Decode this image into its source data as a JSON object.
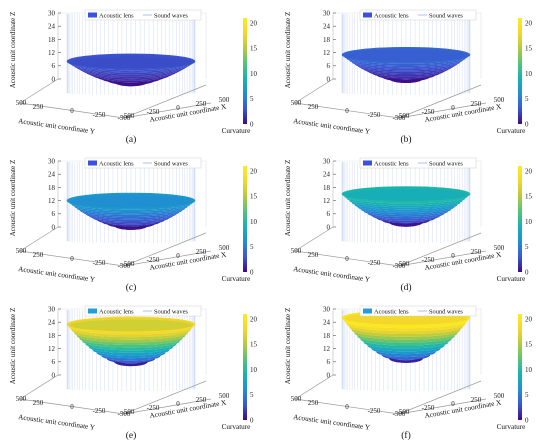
{
  "chart_data": [
    {
      "type": "surface3d",
      "panel_label": "(a)",
      "max_z": 8,
      "color_max": 3
    },
    {
      "type": "surface3d",
      "panel_label": "(b)",
      "max_z": 11,
      "color_max": 4
    },
    {
      "type": "surface3d",
      "panel_label": "(c)",
      "max_z": 12,
      "color_max": 7
    },
    {
      "type": "surface3d",
      "panel_label": "(d)",
      "max_z": 15,
      "color_max": 10
    },
    {
      "type": "surface3d",
      "panel_label": "(e)",
      "max_z": 23,
      "color_max": 19
    },
    {
      "type": "surface3d",
      "panel_label": "(f)",
      "max_z": 26,
      "color_max": 21
    }
  ],
  "shared": {
    "z_axis_label": "Acoustic unit coordinate Z",
    "x_axis_label": "Acoustic unit coordinate X",
    "y_axis_label": "Acoustic unit coordinate Y",
    "colorbar_label": "Curvature",
    "legend": [
      "Acoustic lens",
      "Sound waves"
    ],
    "z_ticks": [
      "0",
      "6",
      "12",
      "18",
      "24",
      "30"
    ],
    "colorbar_ticks": [
      "0",
      "5",
      "10",
      "15",
      "20"
    ],
    "y_ticks": [
      "500",
      "250",
      "0",
      "-250",
      "-500"
    ],
    "x_ticks": [
      "-500",
      "-250",
      "0",
      "250",
      "500"
    ],
    "z_range": [
      0,
      30
    ],
    "colorbar_range": [
      0,
      21
    ],
    "colormap": [
      "#3e0a85",
      "#3b57d1",
      "#1f8fd2",
      "#15b3b3",
      "#52c47a",
      "#b4ca3c",
      "#f5d72b",
      "#f9ed1f"
    ]
  }
}
